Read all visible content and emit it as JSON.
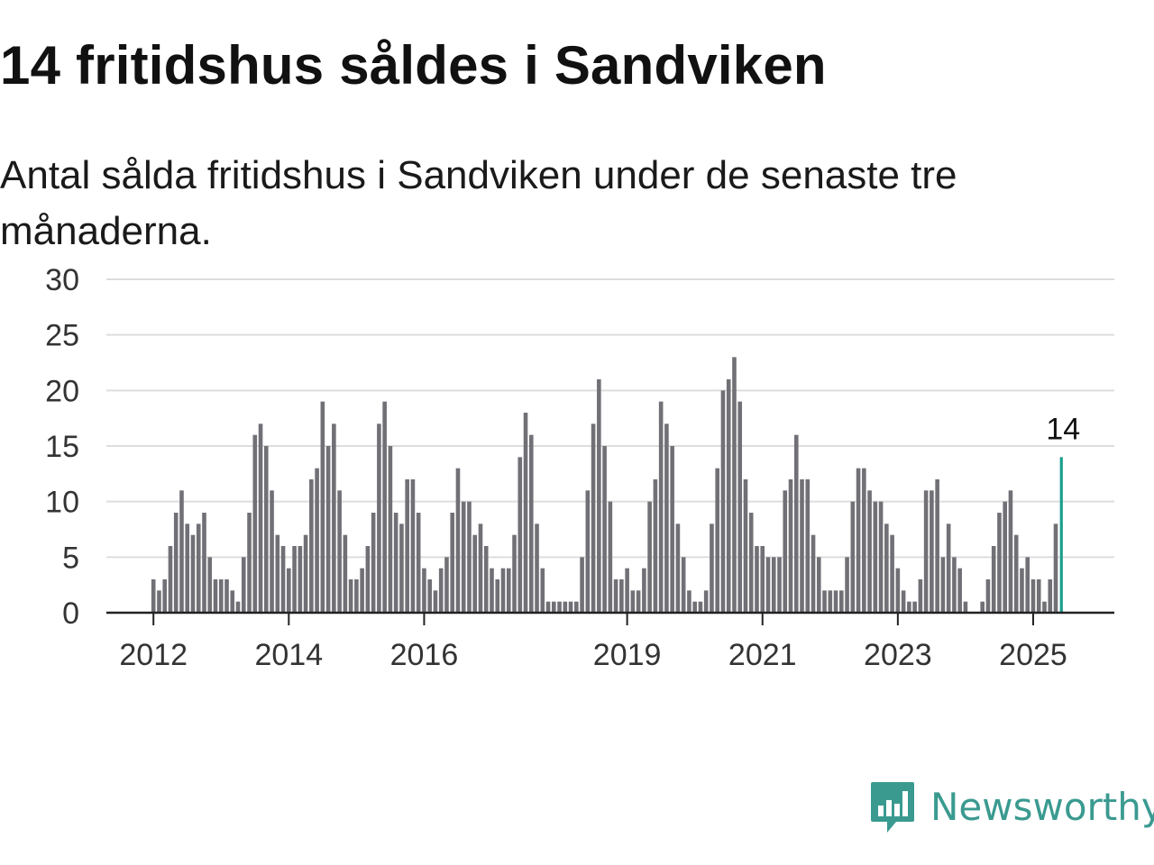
{
  "title": "14 fritidshus såldes i Sandviken",
  "subtitle": "Antal sålda fritidshus i Sandviken under de senaste tre månaderna.",
  "brand": {
    "name": "Newsworthy",
    "color": "#3a9a90",
    "icon": "newsworthy-logo-icon"
  },
  "colors": {
    "bar": "#717076",
    "highlight": "#1a9e8c",
    "grid": "#dddddd",
    "axis": "#222222"
  },
  "chart_data": {
    "type": "bar",
    "title": "14 fritidshus såldes i Sandviken",
    "subtitle": "Antal sålda fritidshus i Sandviken under de senaste tre månaderna.",
    "xlabel": "",
    "ylabel": "",
    "ylim": [
      0,
      30
    ],
    "yticks": [
      0,
      5,
      10,
      15,
      20,
      25,
      30
    ],
    "xticks": [
      "2012",
      "2014",
      "2016",
      "2019",
      "2021",
      "2023",
      "2025"
    ],
    "grid": true,
    "legend": "none",
    "frequency": "monthly",
    "start": "2012-01",
    "end": "2025-06",
    "values": [
      3,
      2,
      3,
      6,
      9,
      11,
      8,
      7,
      8,
      9,
      5,
      3,
      3,
      3,
      2,
      1,
      5,
      9,
      16,
      17,
      15,
      11,
      7,
      6,
      4,
      6,
      6,
      7,
      12,
      13,
      19,
      15,
      17,
      11,
      7,
      3,
      3,
      4,
      6,
      9,
      17,
      19,
      15,
      9,
      8,
      12,
      12,
      9,
      4,
      3,
      2,
      4,
      5,
      9,
      13,
      10,
      10,
      7,
      8,
      6,
      4,
      3,
      4,
      4,
      7,
      14,
      18,
      16,
      8,
      4,
      1,
      1,
      1,
      1,
      1,
      1,
      5,
      11,
      17,
      21,
      15,
      10,
      3,
      3,
      4,
      2,
      2,
      4,
      10,
      12,
      19,
      17,
      15,
      8,
      5,
      2,
      1,
      1,
      2,
      8,
      13,
      20,
      21,
      23,
      19,
      12,
      9,
      6,
      6,
      5,
      5,
      5,
      11,
      12,
      16,
      12,
      12,
      7,
      5,
      2,
      2,
      2,
      2,
      5,
      10,
      13,
      13,
      11,
      10,
      10,
      8,
      7,
      4,
      2,
      1,
      1,
      3,
      11,
      11,
      12,
      5,
      8,
      5,
      4,
      1,
      0,
      0,
      1,
      3,
      6,
      9,
      10,
      11,
      7,
      4,
      5,
      3,
      3,
      1,
      3,
      8,
      14
    ],
    "highlight_label": "14"
  }
}
